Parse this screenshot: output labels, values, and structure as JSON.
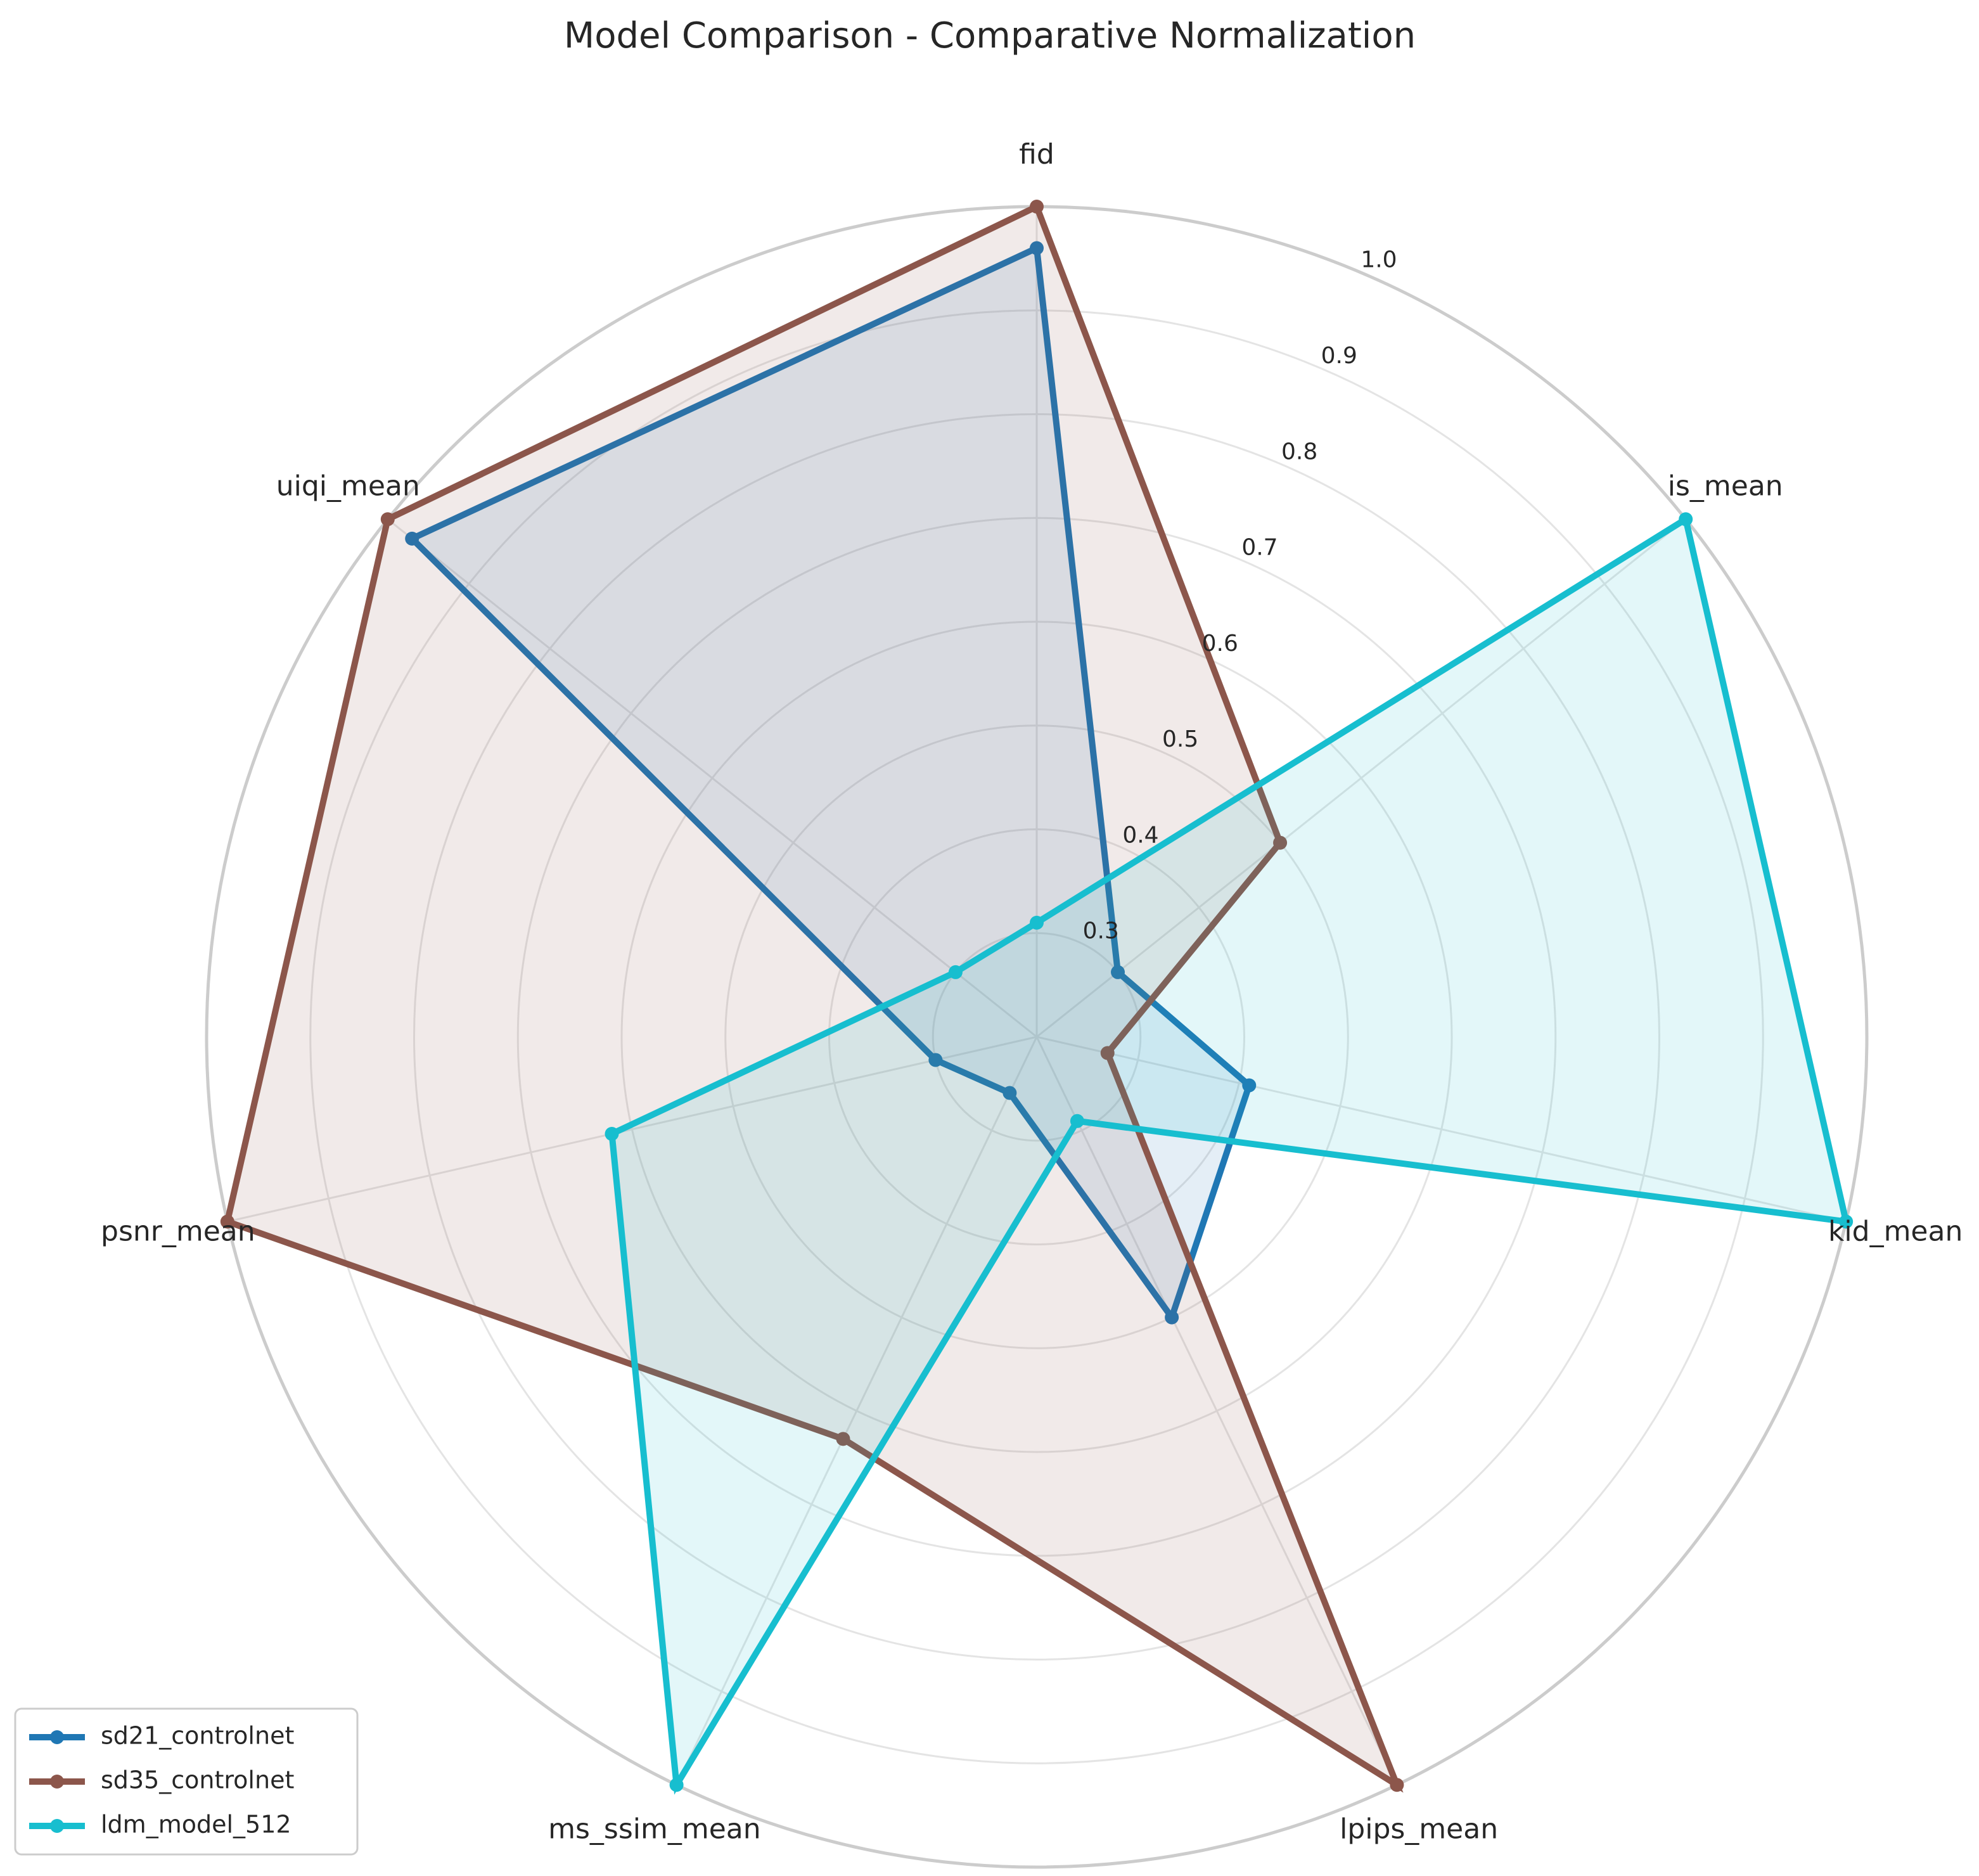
{
  "chart_data": {
    "type": "radar",
    "title": "Model Comparison - Comparative Normalization",
    "axes": [
      "fid",
      "is_mean",
      "kid_mean",
      "lpips_mean",
      "ms_ssim_mean",
      "psnr_mean",
      "uiqi_mean"
    ],
    "r_ticks": [
      0.3,
      0.4,
      0.5,
      0.6,
      0.7,
      0.8,
      0.9,
      1.0
    ],
    "r_tick_labels": [
      "0.3",
      "0.4",
      "0.5",
      "0.6",
      "0.7",
      "0.8",
      "0.9",
      "1.0"
    ],
    "rlim": [
      0.2,
      1.0
    ],
    "grid": true,
    "legend_position": "lower-left",
    "series": [
      {
        "name": "sd21_controlnet",
        "color": "#1f77b4",
        "values": [
          0.96,
          0.3,
          0.41,
          0.5,
          0.26,
          0.3,
          0.97
        ]
      },
      {
        "name": "sd35_controlnet",
        "color": "#8c564b",
        "values": [
          1.0,
          0.5,
          0.27,
          1.0,
          0.63,
          1.0,
          1.0
        ]
      },
      {
        "name": "ldm_model_512",
        "color": "#17becf",
        "values": [
          0.31,
          1.0,
          1.0,
          0.29,
          1.0,
          0.62,
          0.3
        ]
      }
    ]
  }
}
